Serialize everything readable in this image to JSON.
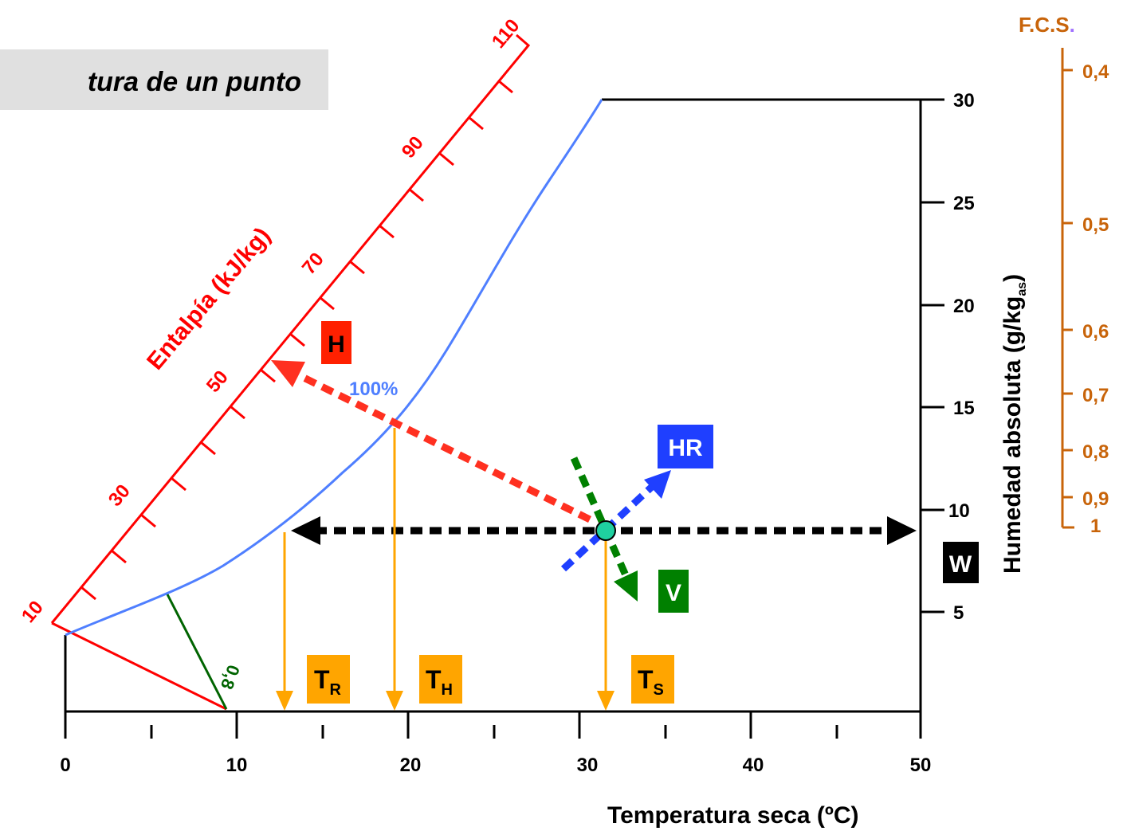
{
  "title": "tura de un punto",
  "x_axis": {
    "label": "Temperatura seca (ºC)",
    "ticks": [
      "0",
      "10",
      "20",
      "30",
      "40",
      "50"
    ]
  },
  "y_axis": {
    "label_main": "Humedad absoluta (g/kg",
    "label_sub": "as",
    "label_close": ")",
    "ticks": [
      "5",
      "10",
      "15",
      "20",
      "25",
      "30"
    ]
  },
  "enthalpy": {
    "label": "Entalpía (kJ/kg)",
    "ticks": [
      "10",
      "30",
      "50",
      "70",
      "90",
      "110"
    ]
  },
  "fcs": {
    "title": "F.C.S",
    "title_dot": ".",
    "ticks": [
      "0,4",
      "0,5",
      "0,6",
      "0,7",
      "0,8",
      "0,9",
      "1"
    ]
  },
  "curve_label": "100%",
  "ratio_line_label": "0,8",
  "markers": {
    "H": "H",
    "HR": "HR",
    "W": "W",
    "V": "V",
    "TR_main": "T",
    "TR_sub": "R",
    "TH_main": "T",
    "TH_sub": "H",
    "TS_main": "T",
    "TS_sub": "S"
  },
  "colors": {
    "enthalpy": "#ff0000",
    "saturation": "#4f7fff",
    "fcs": "#c8640a",
    "temperature_lines": "#ffa500",
    "ratio_line": "#006400",
    "h_label_bg": "#ff2000",
    "hr_label_bg": "#1f3fff",
    "v_label_bg": "#008000",
    "w_label_bg": "#000000",
    "t_label_bg": "#ffa500",
    "point": "#1fd0a0"
  }
}
